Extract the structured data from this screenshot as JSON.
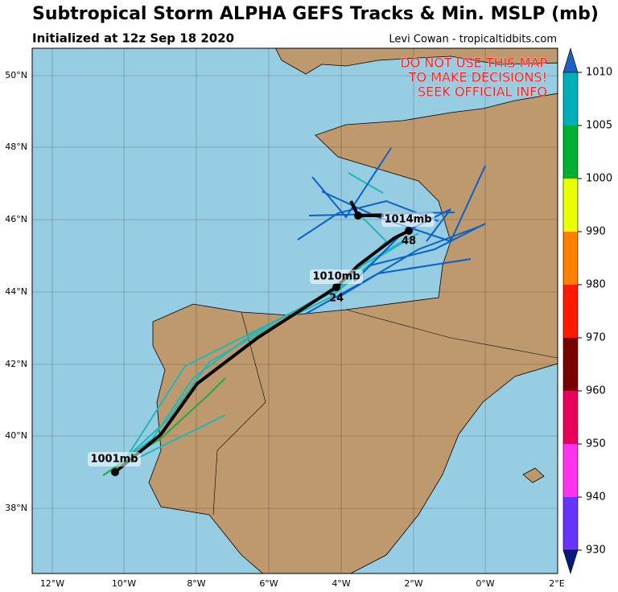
{
  "header": {
    "title": "Subtropical Storm ALPHA GEFS Tracks & Min. MSLP (mb)",
    "subtitle": "Initialized at 12z Sep 18 2020",
    "credit": "Levi Cowan - tropicaltidbits.com"
  },
  "warning": [
    "DO NOT USE THIS MAP",
    "TO MAKE DECISIONS!",
    "SEEK OFFICIAL INFO"
  ],
  "labels": [
    "1014mb",
    "48",
    "1010mb",
    "24",
    "1001mb"
  ],
  "lat_labels": [
    "50°N",
    "48°N",
    "46°N",
    "44°N",
    "42°N",
    "40°N",
    "38°N"
  ],
  "lon_labels": [
    "12°W",
    "10°W",
    "8°W",
    "6°W",
    "4°W",
    "2°W",
    "0°W",
    "2°E"
  ],
  "colorbar_labels": [
    1010,
    1005,
    1000,
    990,
    980,
    970,
    960,
    950,
    940,
    930
  ]
}
